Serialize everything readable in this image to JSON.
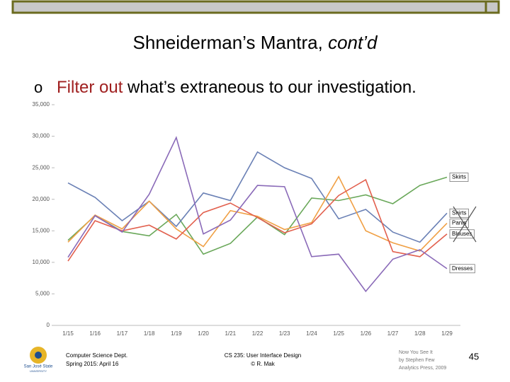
{
  "slide": {
    "title": "Shneiderman’s Mantra, ",
    "title_italic": "cont’d",
    "bullet_marker": "o",
    "bullet_highlight": "Filter out",
    "bullet_rest": " what’s extraneous to our investigation.",
    "footer_left": [
      "Computer Science Dept.",
      "Spring 2015: April 16"
    ],
    "footer_center": [
      "CS 235: User Interface Design",
      "© R. Mak"
    ],
    "footer_source": [
      "Now You See It",
      "by Stephen Few",
      "Analytics Press, 2009"
    ],
    "page_number": "45",
    "logo": [
      "San José State",
      "UNIVERSITY"
    ]
  },
  "chart_data": {
    "type": "line",
    "categories": [
      "1/15",
      "1/16",
      "1/17",
      "1/18",
      "1/19",
      "1/20",
      "1/21",
      "1/22",
      "1/23",
      "1/24",
      "1/25",
      "1/26",
      "1/27",
      "1/28",
      "1/29"
    ],
    "series": [
      {
        "name": "Skirts",
        "color": "#6aa85a",
        "values": [
          13500,
          17400,
          14900,
          14200,
          17600,
          11300,
          13000,
          17200,
          14400,
          20200,
          19800,
          20700,
          19300,
          22200,
          23500
        ]
      },
      {
        "name": "Shirts",
        "color": "#6a80b5",
        "values": [
          22600,
          20300,
          16600,
          19700,
          15700,
          21000,
          19800,
          27500,
          25000,
          23300,
          16900,
          18400,
          14800,
          13200,
          17800
        ]
      },
      {
        "name": "Pants",
        "color": "#f0a045",
        "values": [
          13200,
          17500,
          15300,
          19700,
          15300,
          12500,
          18200,
          17300,
          15200,
          16300,
          23600,
          15000,
          13100,
          11800,
          16200
        ]
      },
      {
        "name": "Blouses",
        "color": "#e2604e",
        "values": [
          10200,
          16600,
          15000,
          15900,
          13700,
          17900,
          19400,
          17100,
          14700,
          16100,
          20600,
          23100,
          11700,
          10900,
          14500
        ]
      },
      {
        "name": "Dresses",
        "color": "#8a6ab8",
        "values": [
          10800,
          17400,
          14800,
          20800,
          29800,
          14500,
          16700,
          22200,
          22000,
          10900,
          11300,
          5400,
          10500,
          12000,
          9000
        ]
      }
    ],
    "ylim": [
      0,
      35000
    ],
    "yticks": [
      0,
      {
        "value": 5000,
        "label": "5,000"
      },
      {
        "value": 10000,
        "label": "10,000"
      },
      {
        "value": 15000,
        "label": "15,000"
      },
      {
        "value": 20000,
        "label": "20,000"
      },
      {
        "value": 25000,
        "label": "25,000"
      },
      {
        "value": 30000,
        "label": "30,000"
      },
      {
        "value": 35000,
        "label": "35,000"
      }
    ],
    "grid": false
  }
}
